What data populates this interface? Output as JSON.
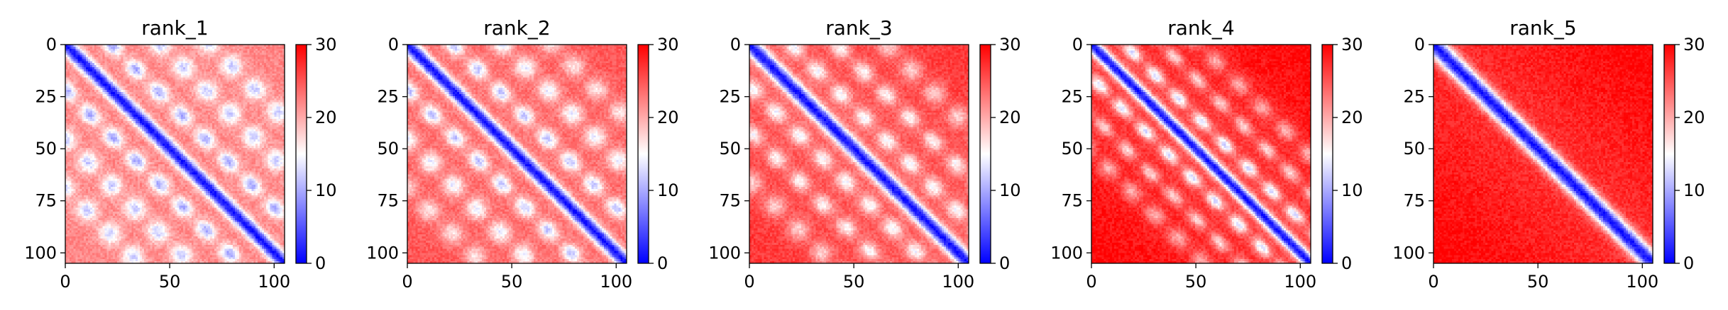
{
  "chart_data": [
    {
      "type": "heatmap",
      "title": "rank_1",
      "rows": 106,
      "cols": 106,
      "xlim": [
        0,
        105
      ],
      "ylim": [
        105,
        0
      ],
      "xticks": [
        0,
        50,
        100
      ],
      "yticks": [
        0,
        25,
        50,
        75,
        100
      ],
      "colorbar": {
        "range": [
          0,
          30
        ],
        "ticks": [
          0,
          10,
          20,
          30
        ],
        "cmap": "bwr",
        "colors": [
          "#0000ff",
          "#ffffff",
          "#ff0000"
        ]
      },
      "pattern": {
        "diag_width": 3.5,
        "bands": [
          {
            "offset": 22,
            "amp": 6,
            "width": 4
          },
          {
            "offset": 46,
            "amp": 5,
            "width": 5
          },
          {
            "offset": 70,
            "amp": 5,
            "width": 5
          }
        ],
        "base": 22,
        "far": 0
      }
    },
    {
      "type": "heatmap",
      "title": "rank_2",
      "rows": 106,
      "cols": 106,
      "xlim": [
        0,
        105
      ],
      "ylim": [
        105,
        0
      ],
      "xticks": [
        0,
        50,
        100
      ],
      "yticks": [
        0,
        25,
        50,
        75,
        100
      ],
      "colorbar": {
        "range": [
          0,
          30
        ],
        "ticks": [
          0,
          10,
          20,
          30
        ],
        "cmap": "bwr",
        "colors": [
          "#0000ff",
          "#ffffff",
          "#ff0000"
        ]
      },
      "pattern": {
        "diag_width": 3.5,
        "bands": [
          {
            "offset": 22,
            "amp": 6,
            "width": 4
          },
          {
            "offset": 46,
            "amp": 5,
            "width": 5
          },
          {
            "offset": 70,
            "amp": 4,
            "width": 5
          }
        ],
        "base": 23,
        "far": 2
      }
    },
    {
      "type": "heatmap",
      "title": "rank_3",
      "rows": 106,
      "cols": 106,
      "xlim": [
        0,
        105
      ],
      "ylim": [
        105,
        0
      ],
      "xticks": [
        0,
        50,
        100
      ],
      "yticks": [
        0,
        25,
        50,
        75,
        100
      ],
      "colorbar": {
        "range": [
          0,
          30
        ],
        "ticks": [
          0,
          10,
          20,
          30
        ],
        "cmap": "bwr",
        "colors": [
          "#0000ff",
          "#ffffff",
          "#ff0000"
        ]
      },
      "pattern": {
        "diag_width": 3.8,
        "bands": [
          {
            "offset": 20,
            "amp": 5,
            "width": 4
          },
          {
            "offset": 42,
            "amp": 5,
            "width": 4
          },
          {
            "offset": 66,
            "amp": 4,
            "width": 5
          }
        ],
        "base": 24,
        "far": 3
      }
    },
    {
      "type": "heatmap",
      "title": "rank_4",
      "rows": 106,
      "cols": 106,
      "xlim": [
        0,
        105
      ],
      "ylim": [
        105,
        0
      ],
      "xticks": [
        0,
        50,
        100
      ],
      "yticks": [
        0,
        25,
        50,
        75,
        100
      ],
      "colorbar": {
        "range": [
          0,
          30
        ],
        "ticks": [
          0,
          10,
          20,
          30
        ],
        "cmap": "bwr",
        "colors": [
          "#0000ff",
          "#ffffff",
          "#ff0000"
        ]
      },
      "pattern": {
        "diag_width": 3.2,
        "bands": [
          {
            "offset": 16,
            "amp": 7,
            "width": 3
          },
          {
            "offset": 34,
            "amp": 5,
            "width": 3
          },
          {
            "offset": 52,
            "amp": 4,
            "width": 4
          }
        ],
        "base": 26,
        "far": 4
      }
    },
    {
      "type": "heatmap",
      "title": "rank_5",
      "rows": 106,
      "cols": 106,
      "xlim": [
        0,
        105
      ],
      "ylim": [
        105,
        0
      ],
      "xticks": [
        0,
        50,
        100
      ],
      "yticks": [
        0,
        25,
        50,
        75,
        100
      ],
      "colorbar": {
        "range": [
          0,
          30
        ],
        "ticks": [
          0,
          10,
          20,
          30
        ],
        "cmap": "bwr",
        "colors": [
          "#0000ff",
          "#ffffff",
          "#ff0000"
        ]
      },
      "pattern": {
        "diag_width": 4.5,
        "bands": [],
        "base": 27,
        "far": 3
      }
    }
  ]
}
